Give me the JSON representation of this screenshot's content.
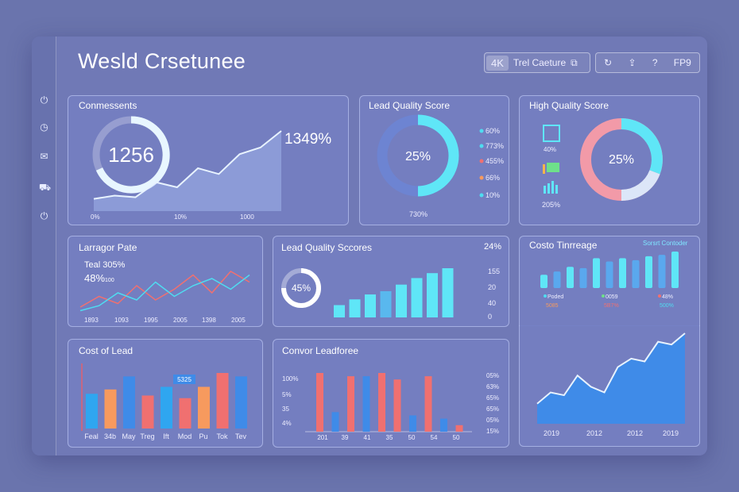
{
  "header": {
    "title": "Wesld Crsetunee",
    "badge_4k": "4K",
    "badge_label": "Trel Caeture",
    "tool_label": "FP9"
  },
  "colors": {
    "cyan": "#4fdcf0",
    "blue": "#3f8be8",
    "red": "#f07070",
    "orange": "#f79a5e",
    "pink": "#f29aa8"
  },
  "icons": [
    "power-icon",
    "clock-icon",
    "mail-icon",
    "car-icon",
    "power-icon"
  ],
  "p1": {
    "title": "Conmessents",
    "gauge": "1256",
    "big": "1349%",
    "x_labels": [
      "0%",
      "10%",
      "1000"
    ]
  },
  "p2": {
    "title": "Lead Quality Score",
    "center": "25%",
    "bottom": "730%",
    "legend": [
      "60%",
      "773%",
      "455%",
      "66%",
      "10%"
    ]
  },
  "p3": {
    "title": "High Quality Score",
    "center": "25%",
    "stat1": "40%",
    "stat2": "205%"
  },
  "p4": {
    "title": "Larragor Pate",
    "line1": "Teal 305%",
    "line2": "48%",
    "line2_sub": "100",
    "x_labels": [
      "1893",
      "1093",
      "1995",
      "2005",
      "1398",
      "2005"
    ]
  },
  "p5": {
    "title": "Lead Quality Sccores",
    "right": "24%",
    "gauge": "45%",
    "y_labels": [
      "155",
      "20",
      "40",
      "0"
    ]
  },
  "p6": {
    "title": "Costo Tinrreage",
    "sub": "Sorsrt Contoder",
    "legend": [
      "Poded",
      "5085",
      "0059",
      "5B7%",
      "48%",
      "500%"
    ]
  },
  "p7": {
    "title": "Cost of Lead",
    "tag": "5325",
    "x_labels": [
      "Feal",
      "34b",
      "May",
      "Treg",
      "Ift",
      "Mod",
      "Pu",
      "Tok",
      "Tev"
    ]
  },
  "p8": {
    "title": "Convor Leadforee",
    "y_labels": [
      "100%",
      "5%",
      "35",
      "4%"
    ],
    "x_labels": [
      "201",
      "39",
      "41",
      "35",
      "50",
      "54",
      "50"
    ],
    "right_labels": [
      "05%",
      "63%",
      "65%",
      "65%",
      "05%",
      "15%"
    ]
  },
  "p9": {
    "x_labels": [
      "2019",
      "2012",
      "2012",
      "2019"
    ]
  },
  "chart_data": [
    {
      "type": "line",
      "title": "Conmessents",
      "values": [
        8,
        12,
        10,
        28,
        22,
        45,
        38,
        62,
        70,
        90
      ]
    },
    {
      "type": "pie",
      "title": "Lead Quality Score",
      "values": [
        75,
        25
      ]
    },
    {
      "type": "pie",
      "title": "High Quality Score",
      "values": [
        45,
        30,
        25
      ]
    },
    {
      "type": "line",
      "title": "Larragor Pate",
      "series": [
        {
          "name": "red",
          "values": [
            10,
            25,
            15,
            40,
            20,
            35,
            55,
            30,
            60,
            45
          ]
        },
        {
          "name": "cyan",
          "values": [
            5,
            12,
            30,
            20,
            45,
            25,
            40,
            50,
            35,
            55
          ]
        }
      ]
    },
    {
      "type": "bar",
      "title": "Lead Quality Sccores",
      "values": [
        15,
        22,
        28,
        32,
        40,
        48,
        54,
        60
      ]
    },
    {
      "type": "bar",
      "title": "Costo Tinrreage",
      "values": [
        20,
        25,
        32,
        30,
        45,
        40,
        45,
        42,
        48,
        50,
        55
      ]
    },
    {
      "type": "bar",
      "title": "Cost of Lead",
      "values": [
        40,
        45,
        60,
        38,
        48,
        35,
        48,
        64,
        60
      ]
    },
    {
      "type": "bar",
      "title": "Convor Leadforee",
      "values": [
        90,
        30,
        85,
        85,
        90,
        80,
        25,
        85,
        20,
        10
      ]
    },
    {
      "type": "area",
      "title": "",
      "values": [
        30,
        50,
        45,
        80,
        60,
        50,
        95,
        110,
        105,
        140,
        135,
        155
      ]
    }
  ]
}
